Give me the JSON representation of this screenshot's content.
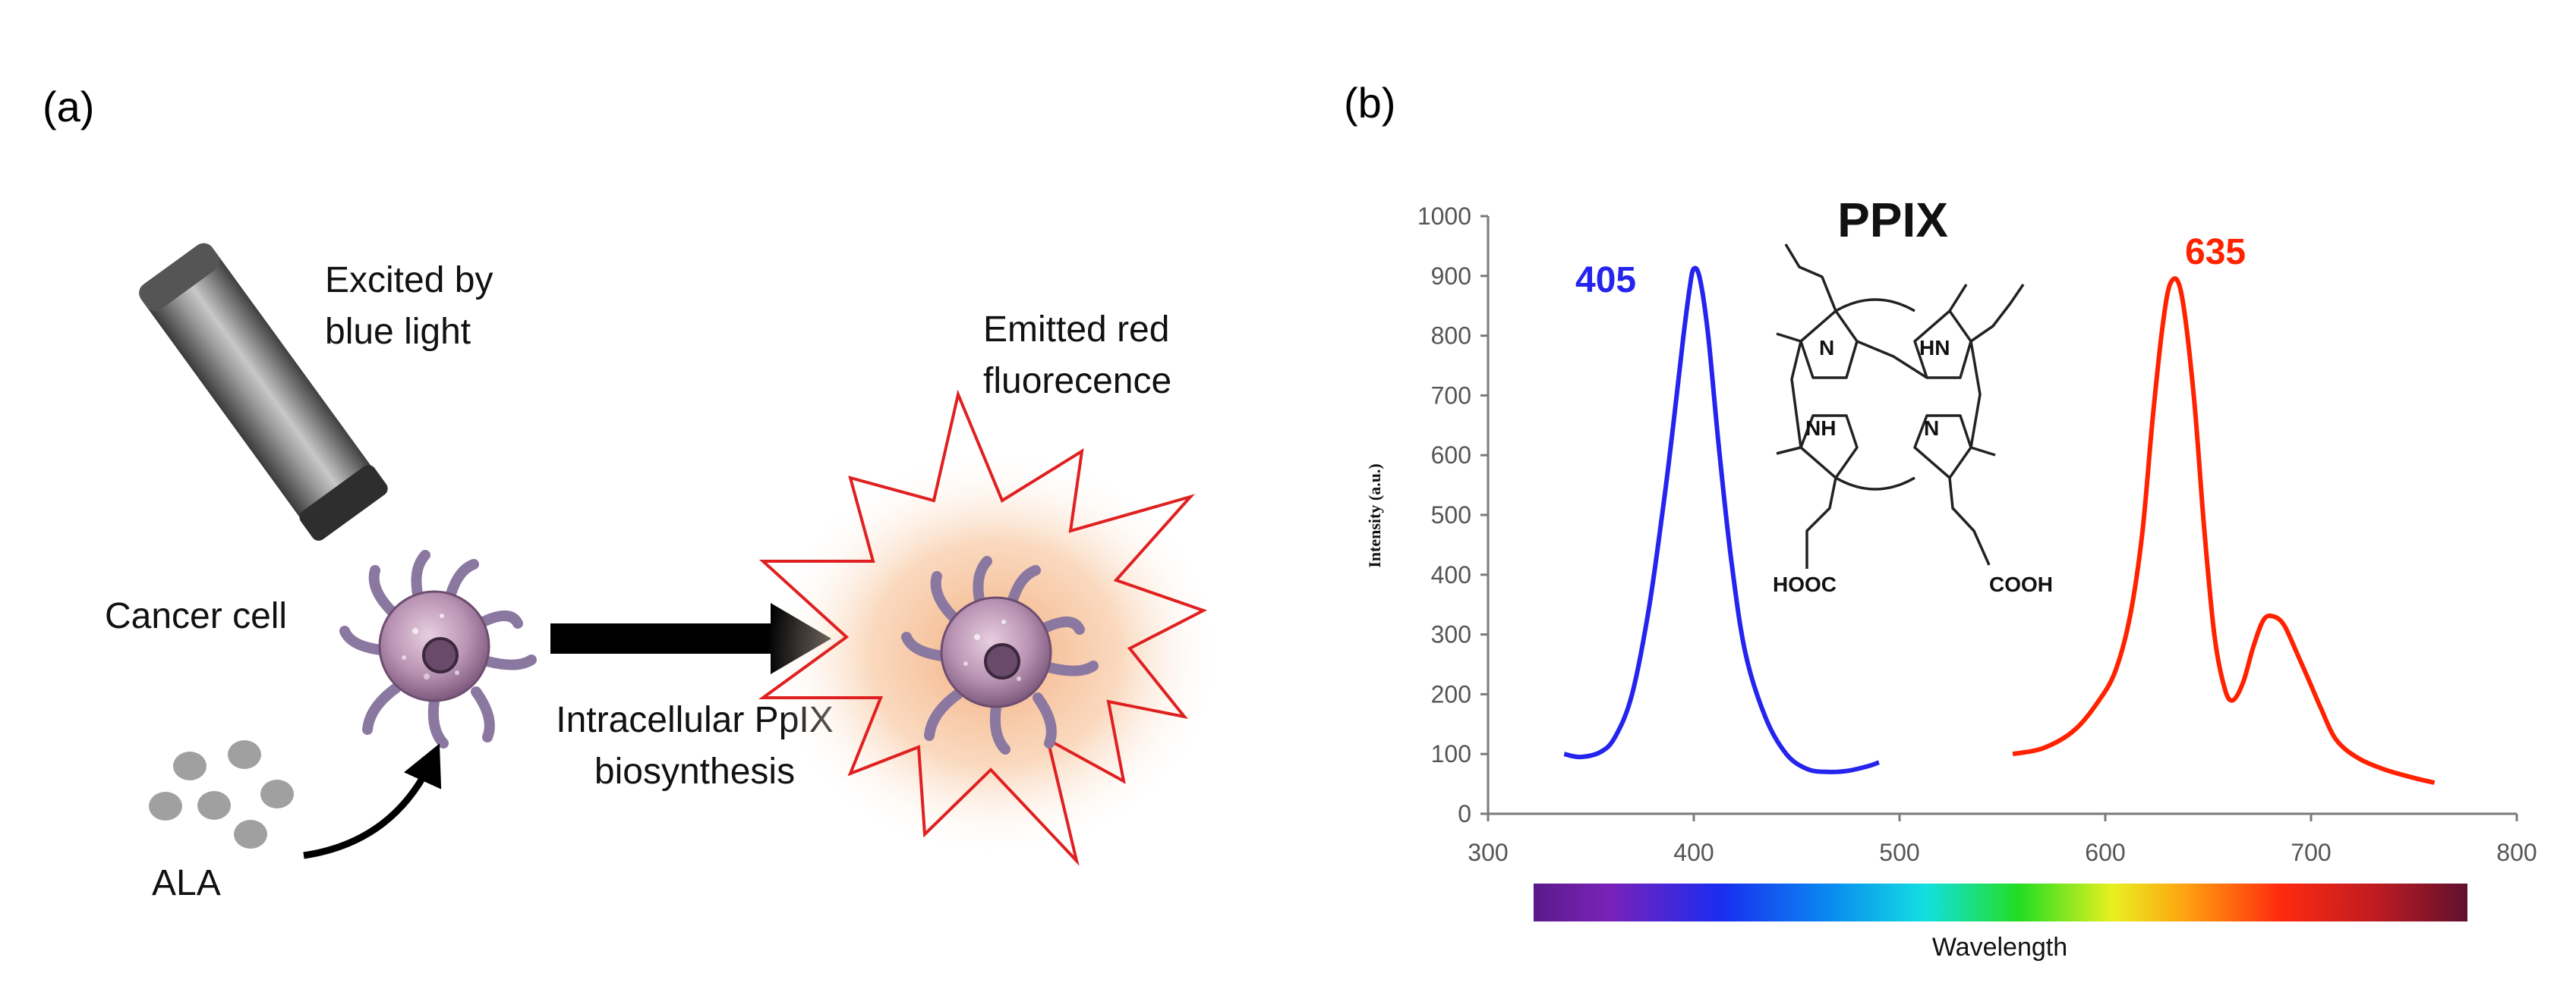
{
  "panel_a": {
    "label": "(a)",
    "excite_text_1": "Excited by",
    "excite_text_2": "blue light",
    "emit_text_1": "Emitted red",
    "emit_text_2": "fluorecence",
    "cancer_cell_label": "Cancer cell",
    "biosynthesis_1": "Intracellular PpIX",
    "biosynthesis_2": "biosynthesis",
    "ala_label": "ALA"
  },
  "panel_b": {
    "label": "(b)",
    "molecule_title": "PPIX",
    "hooc_label": "HOOC",
    "cooh_label": "COOH",
    "wavelength_label": "Wavelength",
    "colors": {
      "excitation": "#2424ee",
      "emission": "#ff2200"
    }
  },
  "chart_data": {
    "type": "line",
    "title": "PPIX",
    "xlabel": "",
    "ylabel": "Intensity (a.u.)",
    "xlim": [
      300,
      800
    ],
    "ylim": [
      0,
      1000
    ],
    "x_ticks": [
      300,
      400,
      500,
      600,
      700,
      800
    ],
    "y_ticks": [
      0,
      100,
      200,
      300,
      400,
      500,
      600,
      700,
      800,
      900,
      1000
    ],
    "grid": false,
    "series": [
      {
        "name": "excitation",
        "peak_label": "405",
        "color": "#2424ee",
        "points": [
          [
            337,
            100
          ],
          [
            345,
            95
          ],
          [
            355,
            104
          ],
          [
            362,
            130
          ],
          [
            370,
            200
          ],
          [
            378,
            340
          ],
          [
            385,
            510
          ],
          [
            390,
            650
          ],
          [
            395,
            800
          ],
          [
            398,
            880
          ],
          [
            400,
            912
          ],
          [
            403,
            895
          ],
          [
            407,
            800
          ],
          [
            412,
            620
          ],
          [
            418,
            430
          ],
          [
            425,
            270
          ],
          [
            435,
            160
          ],
          [
            445,
            100
          ],
          [
            455,
            75
          ],
          [
            465,
            70
          ],
          [
            475,
            72
          ],
          [
            485,
            80
          ],
          [
            490,
            86
          ]
        ]
      },
      {
        "name": "emission",
        "peak_label": "635",
        "color": "#ff2200",
        "points": [
          [
            555,
            100
          ],
          [
            570,
            110
          ],
          [
            585,
            140
          ],
          [
            597,
            190
          ],
          [
            605,
            240
          ],
          [
            612,
            330
          ],
          [
            618,
            470
          ],
          [
            623,
            660
          ],
          [
            628,
            820
          ],
          [
            632,
            890
          ],
          [
            637,
            870
          ],
          [
            643,
            700
          ],
          [
            648,
            480
          ],
          [
            653,
            300
          ],
          [
            658,
            210
          ],
          [
            662,
            190
          ],
          [
            667,
            220
          ],
          [
            672,
            280
          ],
          [
            677,
            325
          ],
          [
            682,
            330
          ],
          [
            687,
            315
          ],
          [
            693,
            270
          ],
          [
            700,
            215
          ],
          [
            705,
            175
          ],
          [
            712,
            125
          ],
          [
            722,
            95
          ],
          [
            735,
            75
          ],
          [
            750,
            60
          ],
          [
            760,
            52
          ]
        ]
      }
    ]
  }
}
